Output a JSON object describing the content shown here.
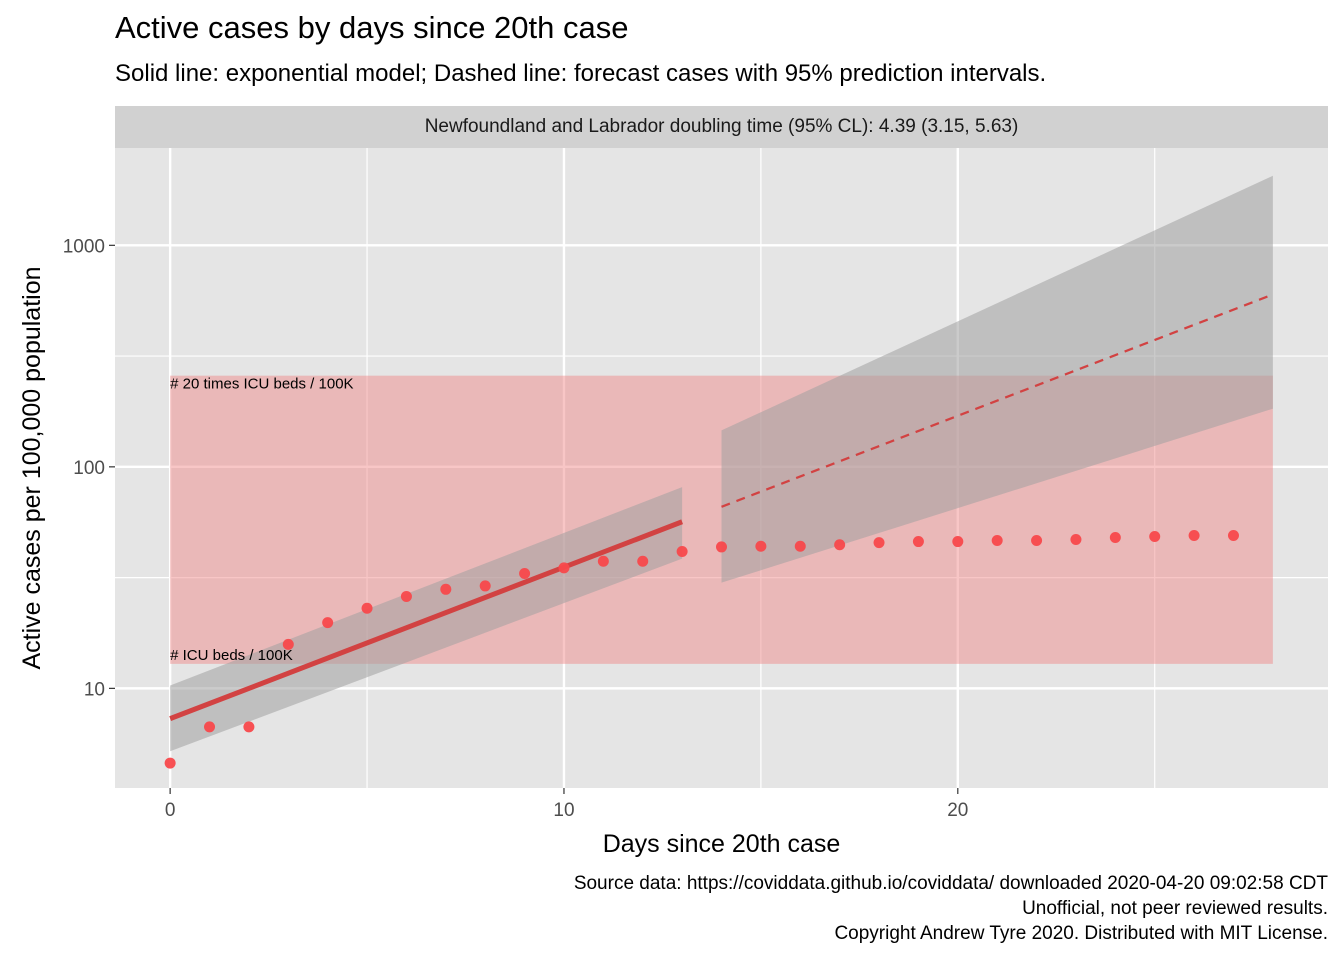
{
  "title": "Active cases by days since 20th case",
  "subtitle": "Solid line: exponential model; Dashed line: forecast cases with 95% prediction intervals.",
  "facet_label": "Newfoundland and Labrador doubling time (95% CL): 4.39 (3.15, 5.63)",
  "captions": [
    "Source data: https://coviddata.github.io/coviddata/ downloaded  2020-04-20 09:02:58 CDT",
    "Unofficial, not peer reviewed results.",
    "Copyright Andrew Tyre 2020. Distributed with MIT License."
  ],
  "colors": {
    "panel": "#e5e5e5",
    "grid": "#ffffff",
    "points": "#f8484b",
    "model_line": "#d24242",
    "ribbon": "#a0a0a0",
    "icu_band": "#f08080"
  },
  "chart_data": {
    "type": "scatter",
    "xlabel": "Days since 20th case",
    "ylabel": "Active cases per 100,000 population",
    "y_scale": "log10",
    "xlim": [
      -1.4,
      29.4
    ],
    "ylim": [
      3.55,
      2750
    ],
    "x_ticks": [
      0,
      10,
      20
    ],
    "x_tick_labels": [
      "0",
      "10",
      "20"
    ],
    "y_ticks": [
      10,
      100,
      1000
    ],
    "y_tick_labels": [
      "10",
      "100",
      "1000"
    ],
    "grid": true,
    "points": {
      "x": [
        0,
        1,
        2,
        3,
        4,
        5,
        6,
        7,
        8,
        9,
        10,
        11,
        12,
        13,
        14,
        15,
        16,
        17,
        18,
        19,
        20,
        21,
        22,
        23,
        24,
        25,
        26,
        27
      ],
      "y": [
        4.6,
        6.7,
        6.7,
        15.8,
        19.8,
        23.0,
        26.0,
        28.0,
        29.0,
        33.0,
        35.0,
        37.5,
        37.5,
        41.5,
        43.5,
        43.8,
        43.8,
        44.5,
        45.5,
        46.0,
        46.0,
        46.5,
        46.5,
        47.0,
        48.0,
        48.5,
        49.0,
        49.0
      ]
    },
    "model_fit": {
      "x": [
        0,
        13
      ],
      "y": [
        7.3,
        56.5
      ],
      "ci_lower": [
        5.2,
        38.5
      ],
      "ci_upper": [
        10.3,
        81.0
      ]
    },
    "forecast": {
      "x": [
        14,
        28
      ],
      "y": [
        66.0,
        600.0
      ],
      "pi_lower": [
        30.0,
        183.0
      ],
      "pi_upper": [
        146.0,
        2060.0
      ]
    },
    "icu_band": {
      "x": [
        0,
        28
      ],
      "lower": 12.9,
      "upper": 258,
      "lower_label": "# ICU beds / 100K",
      "upper_label": "# 20 times ICU beds / 100K"
    }
  }
}
